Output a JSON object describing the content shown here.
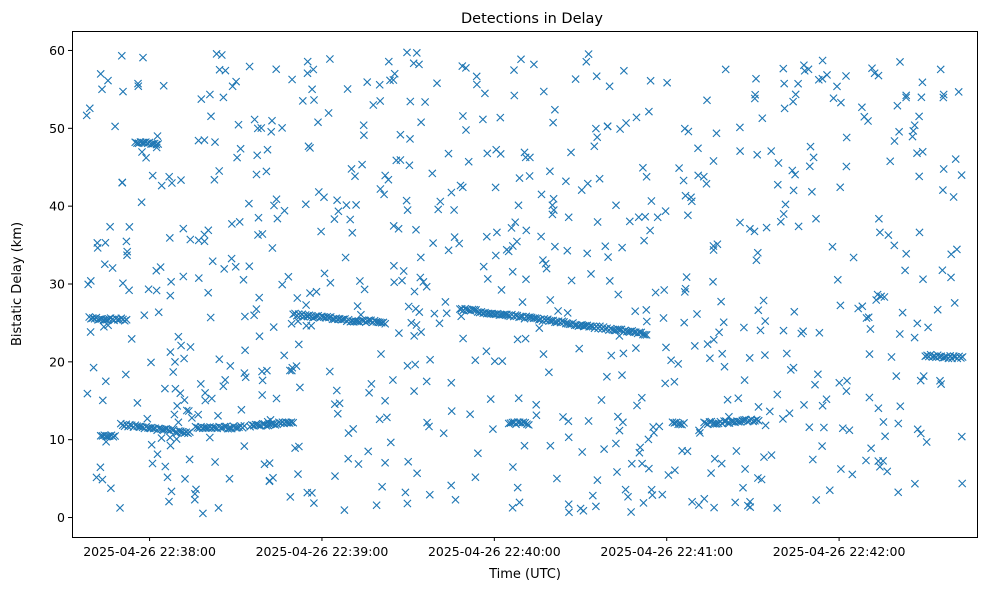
{
  "chart_data": {
    "type": "scatter",
    "title": "Detections in Delay",
    "xlabel": "Time (UTC)",
    "ylabel": "Bistatic Delay (km)",
    "x_start": "2025-04-26 22:37:38",
    "x_end": "2025-04-26 22:42:43",
    "xlim": [
      "2025-04-26 22:37:33",
      "2025-04-26 22:42:48"
    ],
    "ylim": [
      -2.5,
      62.5
    ],
    "x_ticks": [
      "2025-04-26 22:38:00",
      "2025-04-26 22:39:00",
      "2025-04-26 22:40:00",
      "2025-04-26 22:41:00",
      "2025-04-26 22:42:00"
    ],
    "y_ticks": [
      "0",
      "10",
      "20",
      "30",
      "40",
      "50",
      "60"
    ],
    "y_tick_values": [
      0,
      10,
      20,
      30,
      40,
      50,
      60
    ],
    "marker": "x",
    "color": "#1f77b4",
    "grid": false,
    "legend": "none",
    "tracks": [
      {
        "start": "2025-04-26 22:37:39",
        "end": "2025-04-26 22:37:52",
        "y_start": 25.6,
        "y_end": 25.4
      },
      {
        "start": "2025-04-26 22:37:55",
        "end": "2025-04-26 22:38:03",
        "y_start": 48.2,
        "y_end": 47.9
      },
      {
        "start": "2025-04-26 22:37:43",
        "end": "2025-04-26 22:37:48",
        "y_start": 10.4,
        "y_end": 10.4
      },
      {
        "start": "2025-04-26 22:37:50",
        "end": "2025-04-26 22:38:14",
        "y_start": 11.9,
        "y_end": 10.9
      },
      {
        "start": "2025-04-26 22:38:16",
        "end": "2025-04-26 22:38:33",
        "y_start": 11.5,
        "y_end": 11.6
      },
      {
        "start": "2025-04-26 22:38:35",
        "end": "2025-04-26 22:38:50",
        "y_start": 11.8,
        "y_end": 12.2
      },
      {
        "start": "2025-04-26 22:38:50",
        "end": "2025-04-26 22:39:13",
        "y_start": 26.1,
        "y_end": 25.2
      },
      {
        "start": "2025-04-26 22:39:14",
        "end": "2025-04-26 22:39:22",
        "y_start": 25.3,
        "y_end": 25.0
      },
      {
        "start": "2025-04-26 22:39:48",
        "end": "2025-04-26 22:40:53",
        "y_start": 26.8,
        "y_end": 23.6
      },
      {
        "start": "2025-04-26 22:40:05",
        "end": "2025-04-26 22:40:12",
        "y_start": 12.2,
        "y_end": 12.0
      },
      {
        "start": "2025-04-26 22:41:02",
        "end": "2025-04-26 22:41:06",
        "y_start": 12.1,
        "y_end": 12.1
      },
      {
        "start": "2025-04-26 22:41:13",
        "end": "2025-04-26 22:41:32",
        "y_start": 12.1,
        "y_end": 12.5
      },
      {
        "start": "2025-04-26 22:42:30",
        "end": "2025-04-26 22:42:43",
        "y_start": 20.8,
        "y_end": 20.5
      }
    ],
    "scatter": {
      "count": 780,
      "y_range": [
        0.5,
        60
      ]
    }
  }
}
